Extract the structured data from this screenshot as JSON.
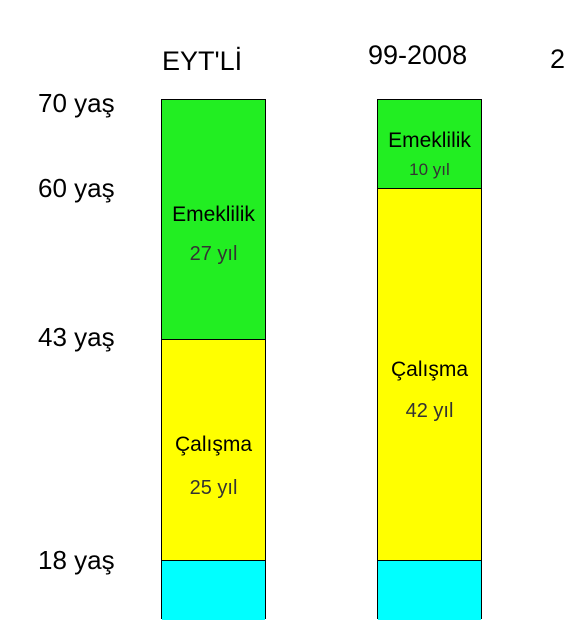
{
  "columns": [
    {
      "title": "EYT'Lİ",
      "segments": [
        {
          "label": "Emeklilik",
          "value": "27 yıl",
          "color": "#22ee22"
        },
        {
          "label": "Çalışma",
          "value": "25 yıl",
          "color": "#ffff00"
        },
        {
          "label": "",
          "value": "",
          "color": "#00ffff"
        }
      ]
    },
    {
      "title": "99-2008",
      "segments": [
        {
          "label": "Emeklilik",
          "value": "10 yıl",
          "color": "#22ee22"
        },
        {
          "label": "Çalışma",
          "value": "42 yıl",
          "color": "#ffff00"
        },
        {
          "label": "",
          "value": "",
          "color": "#00ffff"
        }
      ]
    }
  ],
  "age_labels": [
    "70 yaş",
    "60 yaş",
    "43 yaş",
    "18 yaş"
  ],
  "next_column_glyph": "2"
}
